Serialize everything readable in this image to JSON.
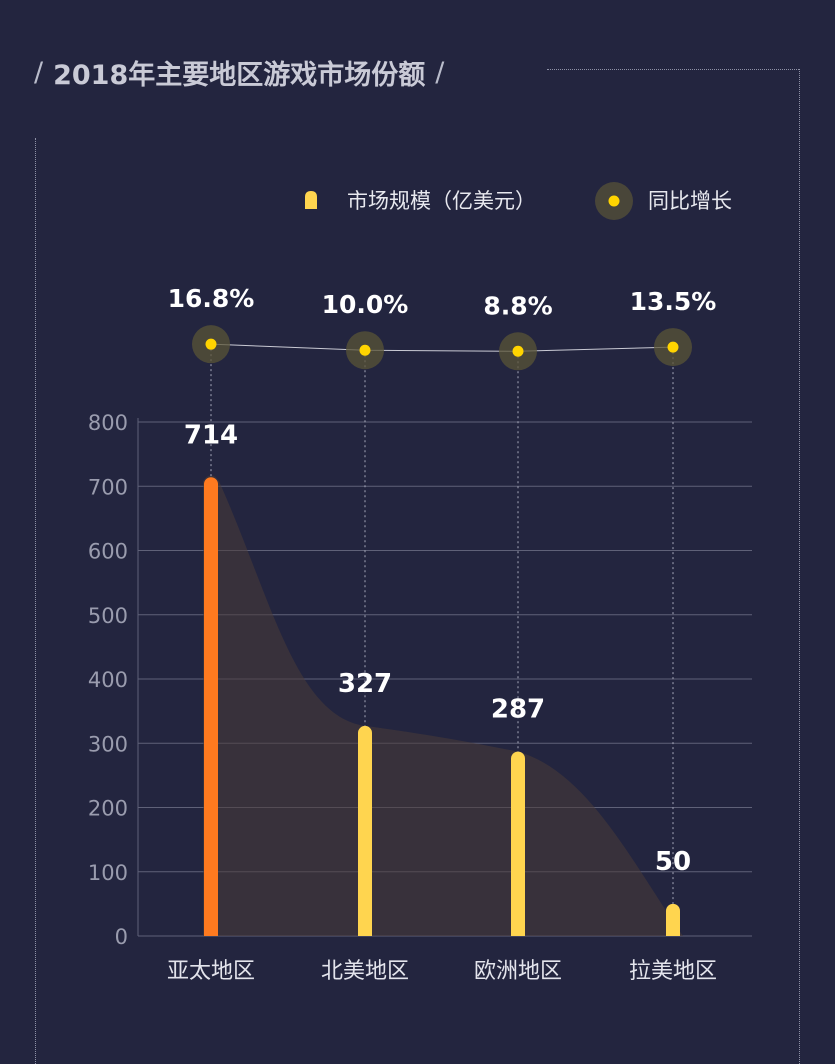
{
  "title": "2018年主要地区游戏市场份额",
  "title_decoration": "/",
  "colors": {
    "background": "#23253f",
    "highlight_bar": "#ff7a1f",
    "bar": "#ffd54f",
    "dot": "#ffd400",
    "dot_halo": "#5a5437",
    "gridline": "#5f6178",
    "axis_text": "#9a9cae",
    "label_text": "#ffffff",
    "area_fill": "#4a3d39"
  },
  "chart_data": {
    "type": "bar",
    "categories": [
      "亚太地区",
      "北美地区",
      "欧洲地区",
      "拉美地区"
    ],
    "series": [
      {
        "name": "市场规模（亿美元）",
        "values": [
          714,
          327,
          287,
          50
        ],
        "icon": "bar-legend-icon"
      },
      {
        "name": "同比增长",
        "type": "line",
        "values": [
          16.8,
          10.0,
          8.8,
          13.5
        ],
        "labels": [
          "16.8%",
          "10.0%",
          "8.8%",
          "13.5%"
        ],
        "icon": "dot-legend-icon"
      }
    ],
    "value_labels": [
      "714",
      "327",
      "287",
      "50"
    ],
    "y_ticks": [
      0,
      100,
      200,
      300,
      400,
      500,
      600,
      700,
      800
    ],
    "ylim": [
      0,
      800
    ],
    "grid": true,
    "legend_position": "top-right",
    "highlight_index": 0
  }
}
